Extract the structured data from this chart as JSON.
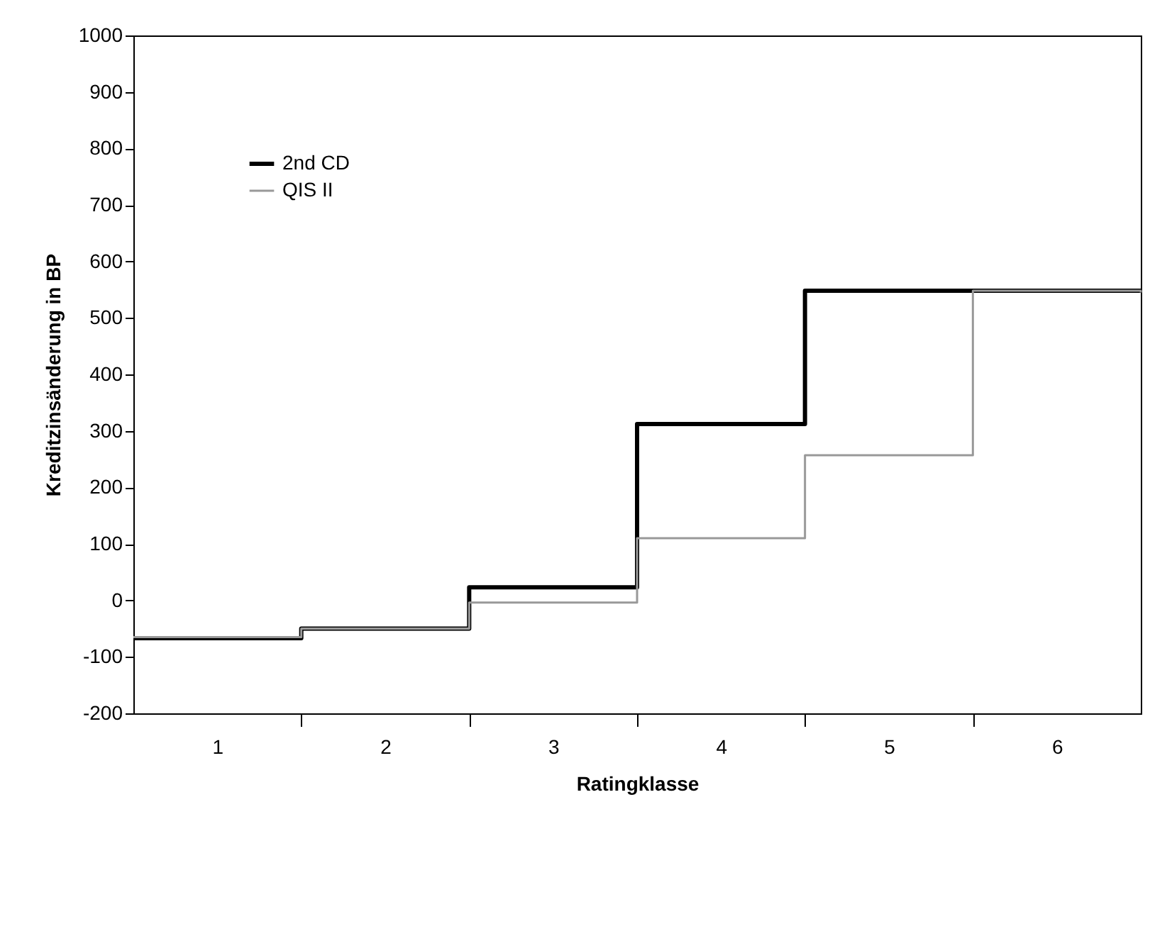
{
  "chart_data": {
    "type": "step",
    "xlabel": "Ratingklasse",
    "ylabel": "Kreditzinsänderung in BP",
    "xlim": [
      0.5,
      6.5
    ],
    "xticks": [
      {
        "value": 1.5,
        "label": null
      },
      {
        "value": 2.5,
        "label": null
      },
      {
        "value": 3.5,
        "label": null
      },
      {
        "value": 4.5,
        "label": null
      },
      {
        "value": 5.5,
        "label": null
      },
      1,
      2,
      3,
      4,
      5,
      6
    ],
    "ylim": [
      -200,
      1000
    ],
    "yticks": [
      -200,
      -100,
      0,
      100,
      200,
      300,
      400,
      500,
      600,
      700,
      800,
      900,
      1000
    ],
    "grid": false,
    "legend": "top left",
    "marker": "none",
    "line_style": "solid",
    "series": [
      {
        "name": "2nd CD",
        "color": "#000000",
        "x": [
          0.5,
          1.5,
          2.5,
          3.5,
          4.5,
          5.5,
          6.5
        ],
        "values": [
          -67,
          -50,
          23,
          312,
          548,
          548,
          548
        ]
      },
      {
        "name": "QIS II",
        "color": "#999999",
        "x": [
          0.5,
          1.5,
          2.5,
          3.5,
          4.5,
          5.5,
          6.5
        ],
        "values": [
          -65,
          -50,
          -4,
          110,
          257,
          548,
          545
        ]
      }
    ]
  }
}
